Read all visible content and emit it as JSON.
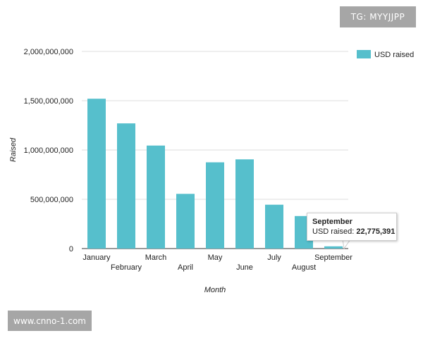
{
  "chart_data": {
    "type": "bar",
    "categories": [
      "January",
      "February",
      "March",
      "April",
      "May",
      "June",
      "July",
      "August",
      "September"
    ],
    "series": [
      {
        "name": "USD raised",
        "values": [
          1520000000,
          1270000000,
          1045000000,
          555000000,
          875000000,
          905000000,
          445000000,
          330000000,
          22775391
        ]
      }
    ],
    "xlabel": "Month",
    "ylabel": "Raised",
    "ylim": [
      0,
      2000000000
    ],
    "yticks": [
      0,
      500000000,
      1000000000,
      1500000000,
      2000000000
    ],
    "ytick_labels": [
      "0",
      "500,000,000",
      "1,000,000,000",
      "1,500,000,000",
      "2,000,000,000"
    ],
    "grid": true,
    "legend": "top-right"
  },
  "colors": {
    "bar": "#56bfcc",
    "grid": "#dddddd",
    "axis_text": "#222222"
  },
  "tooltip": {
    "title": "September",
    "label": "USD raised: ",
    "value": "22,775,391"
  },
  "watermarks": {
    "top_right": "TG: MYYJJPP",
    "bottom_left": "www.cnno-1.com"
  }
}
